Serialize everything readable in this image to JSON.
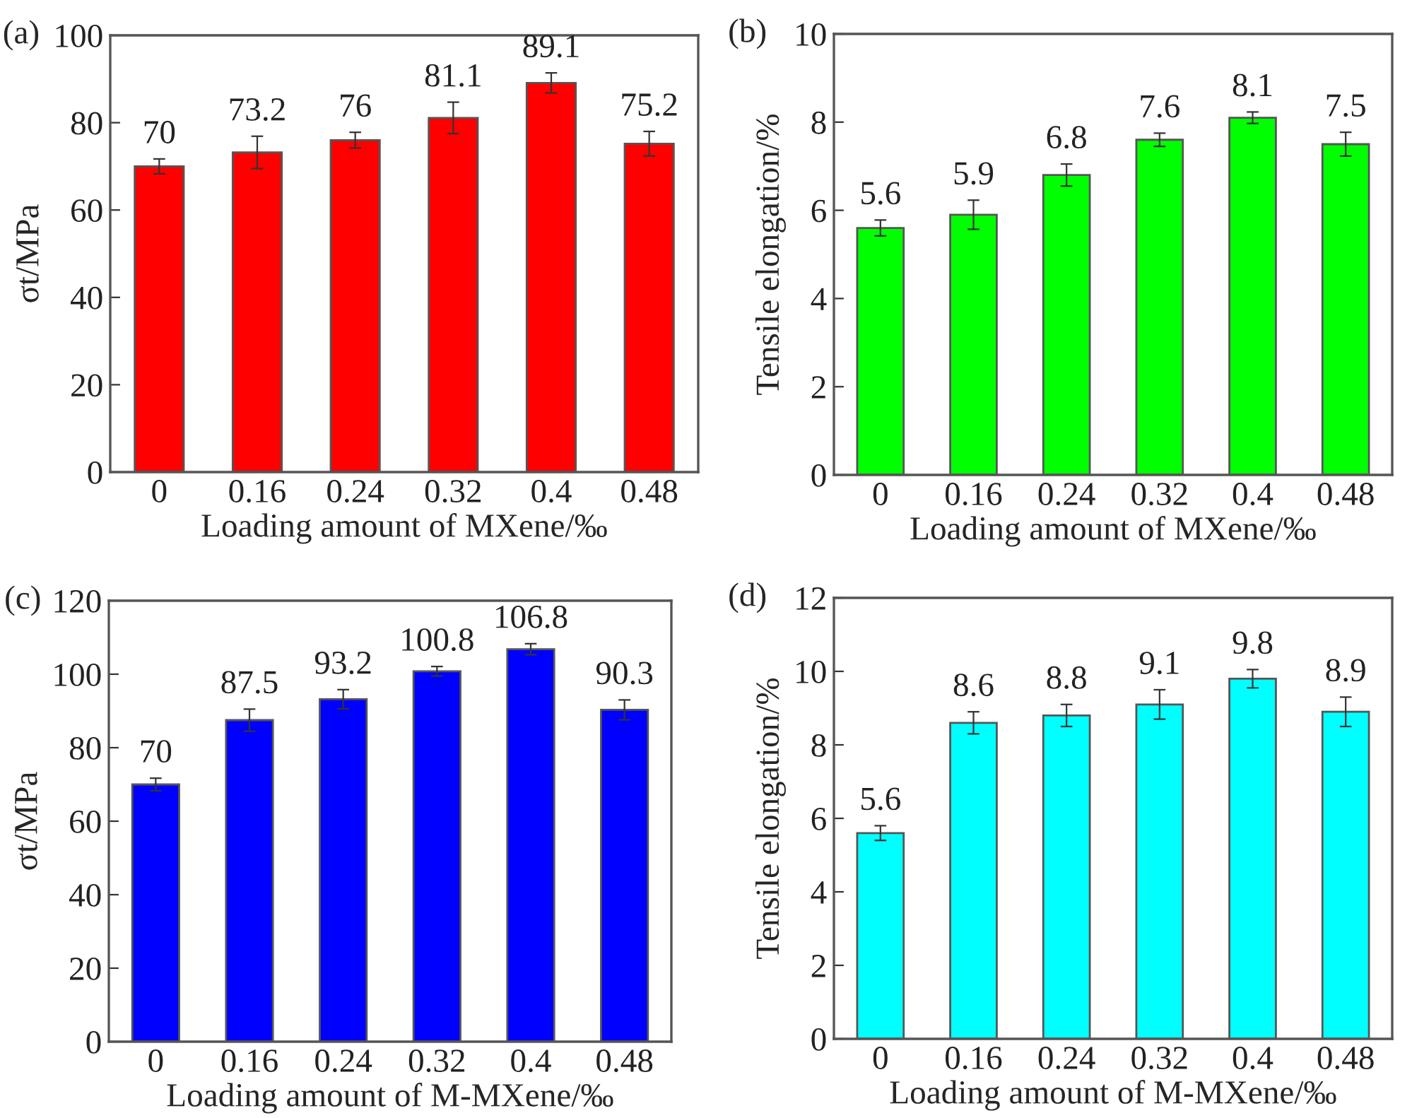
{
  "chart_data": [
    {
      "type": "bar",
      "title": "(a)",
      "xlabel": "Loading amount of MXene/‰",
      "ylabel": "σt/MPa",
      "categories": [
        "0",
        "0.16",
        "0.24",
        "0.32",
        "0.4",
        "0.48"
      ],
      "values": [
        70,
        73.2,
        76,
        81.1,
        89.1,
        75.2
      ],
      "errors": [
        1.7,
        3.7,
        1.8,
        3.6,
        2.3,
        2.8
      ],
      "color": "#ff0000",
      "ylim": [
        0,
        100
      ],
      "yticks": [
        0,
        20,
        40,
        60,
        80,
        100
      ],
      "data_labels": true,
      "grid": false,
      "legend": false
    },
    {
      "type": "bar",
      "title": "(b)",
      "xlabel": "Loading amount of MXene/‰",
      "ylabel": "Tensile elongation/%",
      "categories": [
        "0",
        "0.16",
        "0.24",
        "0.32",
        "0.4",
        "0.48"
      ],
      "values": [
        5.6,
        5.9,
        6.8,
        7.6,
        8.1,
        7.5
      ],
      "errors": [
        0.18,
        0.33,
        0.25,
        0.15,
        0.13,
        0.27
      ],
      "color": "#00ff00",
      "ylim": [
        0,
        10
      ],
      "yticks": [
        0,
        2,
        4,
        6,
        8,
        10
      ],
      "data_labels": true,
      "grid": false,
      "legend": false
    },
    {
      "type": "bar",
      "title": "(c)",
      "xlabel": "Loading amount of M-MXene/‰",
      "ylabel": "σt/MPa",
      "categories": [
        "0",
        "0.16",
        "0.24",
        "0.32",
        "0.4",
        "0.48"
      ],
      "values": [
        70,
        87.5,
        93.2,
        100.8,
        106.8,
        90.3
      ],
      "errors": [
        1.7,
        3.0,
        2.6,
        1.3,
        1.5,
        2.7
      ],
      "color": "#0000ff",
      "ylim": [
        0,
        120
      ],
      "yticks": [
        0,
        20,
        40,
        60,
        80,
        100,
        120
      ],
      "data_labels": true,
      "grid": false,
      "legend": false
    },
    {
      "type": "bar",
      "title": "(d)",
      "xlabel": "Loading amount of M-MXene/‰",
      "ylabel": "Tensile elongation/%",
      "categories": [
        "0",
        "0.16",
        "0.24",
        "0.32",
        "0.4",
        "0.48"
      ],
      "values": [
        5.6,
        8.6,
        8.8,
        9.1,
        9.8,
        8.9
      ],
      "errors": [
        0.2,
        0.3,
        0.3,
        0.4,
        0.25,
        0.4
      ],
      "color": "#00ffff",
      "ylim": [
        0,
        12
      ],
      "yticks": [
        0,
        2,
        4,
        6,
        8,
        10,
        12
      ],
      "data_labels": true,
      "grid": false,
      "legend": false
    }
  ]
}
